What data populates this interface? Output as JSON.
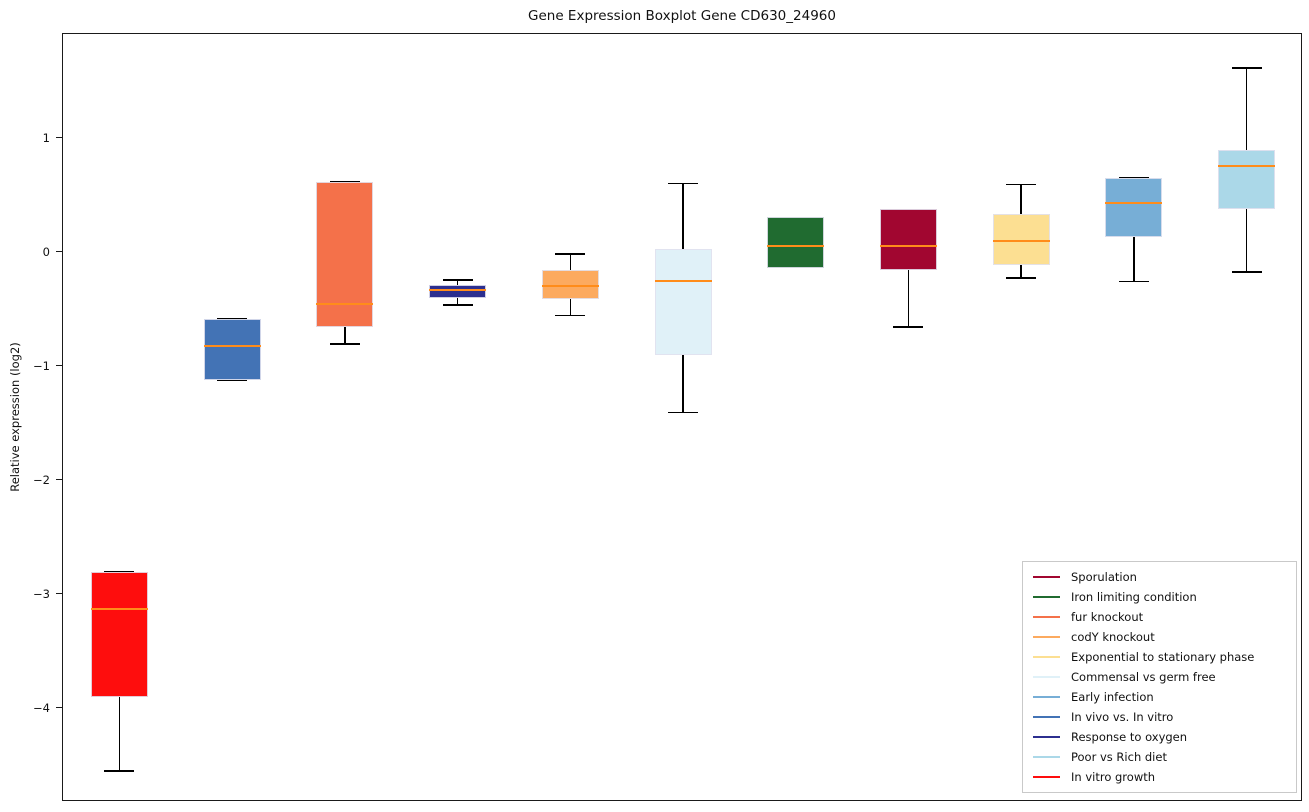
{
  "chart_data": {
    "type": "boxplot",
    "title": "Gene Expression Boxplot Gene CD630_24960",
    "ylabel": "Relative expression (log2)",
    "xlabel": "",
    "ylim": [
      -4.82,
      1.92
    ],
    "yticks": [
      1,
      0,
      -1,
      -2,
      -3,
      -4
    ],
    "ytick_labels": [
      "1",
      "0",
      "−1",
      "−2",
      "−3",
      "−4"
    ],
    "grid": false,
    "median_color": "#ff8c1a",
    "whisker_color": "#000000",
    "boxes": [
      {
        "name": "In vitro growth",
        "color": "#fe0d0d",
        "whislo": -4.55,
        "q1": -3.9,
        "med": -3.13,
        "q3": -2.8,
        "whishi": -2.8
      },
      {
        "name": "In vivo vs. In vitro",
        "color": "#4373b5",
        "whislo": -1.12,
        "q1": -1.12,
        "med": -0.82,
        "q3": -0.58,
        "whishi": -0.58
      },
      {
        "name": "fur knockout",
        "color": "#f4714a",
        "whislo": -0.8,
        "q1": -0.65,
        "med": -0.45,
        "q3": 0.62,
        "whishi": 0.62
      },
      {
        "name": "Response to oxygen",
        "color": "#2c2f8f",
        "whislo": -0.46,
        "q1": -0.4,
        "med": -0.33,
        "q3": -0.28,
        "whishi": -0.24
      },
      {
        "name": "codY knockout",
        "color": "#fcaa5f",
        "whislo": -0.55,
        "q1": -0.41,
        "med": -0.29,
        "q3": -0.15,
        "whishi": -0.01
      },
      {
        "name": "Commensal vs germ free",
        "color": "#e0f1f8",
        "whislo": -1.4,
        "q1": -0.9,
        "med": -0.25,
        "q3": 0.03,
        "whishi": 0.61
      },
      {
        "name": "Iron limiting condition",
        "color": "#206b30",
        "whislo": -0.13,
        "q1": -0.13,
        "med": 0.06,
        "q3": 0.31,
        "whishi": 0.31
      },
      {
        "name": "Sporulation",
        "color": "#a10630",
        "whislo": -0.65,
        "q1": -0.15,
        "med": 0.06,
        "q3": 0.38,
        "whishi": 0.38
      },
      {
        "name": "Exponential to stationary phase",
        "color": "#fcdf92",
        "whislo": -0.22,
        "q1": -0.11,
        "med": 0.1,
        "q3": 0.34,
        "whishi": 0.6
      },
      {
        "name": "Early infection",
        "color": "#77aed6",
        "whislo": -0.25,
        "q1": 0.14,
        "med": 0.44,
        "q3": 0.66,
        "whishi": 0.66
      },
      {
        "name": "Poor vs Rich diet",
        "color": "#abd8e8",
        "whislo": -0.17,
        "q1": 0.38,
        "med": 0.76,
        "q3": 0.9,
        "whishi": 1.62
      }
    ],
    "legend": {
      "position": "lower right",
      "entries": [
        {
          "label": "Sporulation",
          "color": "#a10630"
        },
        {
          "label": "Iron limiting condition",
          "color": "#206b30"
        },
        {
          "label": "fur knockout",
          "color": "#f4714a"
        },
        {
          "label": "codY knockout",
          "color": "#fcaa5f"
        },
        {
          "label": "Exponential to stationary phase",
          "color": "#fcdf92"
        },
        {
          "label": "Commensal vs germ free",
          "color": "#e0f1f8"
        },
        {
          "label": "Early infection",
          "color": "#77aed6"
        },
        {
          "label": "In vivo vs. In vitro",
          "color": "#4373b5"
        },
        {
          "label": "Response to oxygen",
          "color": "#2c2f8f"
        },
        {
          "label": "Poor vs Rich diet",
          "color": "#abd8e8"
        },
        {
          "label": "In vitro growth",
          "color": "#fe0d0d"
        }
      ]
    }
  }
}
